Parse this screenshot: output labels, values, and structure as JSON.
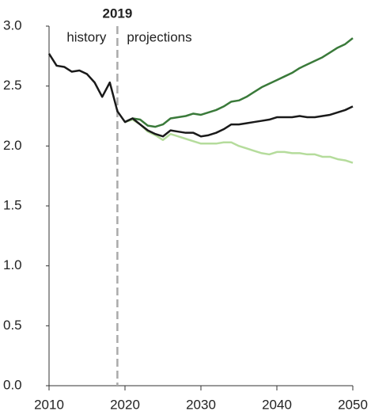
{
  "chart_data": {
    "type": "line",
    "x": [
      2010,
      2011,
      2012,
      2013,
      2014,
      2015,
      2016,
      2017,
      2018,
      2019,
      2020,
      2021,
      2022,
      2023,
      2024,
      2025,
      2026,
      2027,
      2028,
      2029,
      2030,
      2031,
      2032,
      2033,
      2034,
      2035,
      2036,
      2037,
      2038,
      2039,
      2040,
      2041,
      2042,
      2043,
      2044,
      2045,
      2046,
      2047,
      2048,
      2049,
      2050
    ],
    "series": [
      {
        "color": "#3a7a3a",
        "values": [
          null,
          null,
          null,
          null,
          null,
          null,
          null,
          null,
          null,
          null,
          2.2,
          2.23,
          2.22,
          2.17,
          2.16,
          2.18,
          2.23,
          2.24,
          2.25,
          2.27,
          2.26,
          2.28,
          2.3,
          2.33,
          2.37,
          2.38,
          2.41,
          2.45,
          2.49,
          2.52,
          2.55,
          2.58,
          2.61,
          2.65,
          2.68,
          2.71,
          2.74,
          2.78,
          2.82,
          2.85,
          2.9
        ]
      },
      {
        "color": "#b5dc9c",
        "values": [
          null,
          null,
          null,
          null,
          null,
          null,
          null,
          null,
          null,
          null,
          2.2,
          2.22,
          2.18,
          2.12,
          2.09,
          2.05,
          2.1,
          2.08,
          2.06,
          2.04,
          2.02,
          2.02,
          2.02,
          2.03,
          2.03,
          2.0,
          1.98,
          1.96,
          1.94,
          1.93,
          1.95,
          1.95,
          1.94,
          1.94,
          1.93,
          1.93,
          1.91,
          1.91,
          1.89,
          1.88,
          1.86
        ]
      },
      {
        "color": "#1a1a1a",
        "values": [
          2.77,
          2.67,
          2.66,
          2.62,
          2.63,
          2.6,
          2.53,
          2.41,
          2.53,
          2.29,
          2.2,
          2.23,
          2.18,
          2.13,
          2.1,
          2.08,
          2.13,
          2.12,
          2.11,
          2.11,
          2.08,
          2.09,
          2.11,
          2.14,
          2.18,
          2.18,
          2.19,
          2.2,
          2.21,
          2.22,
          2.24,
          2.24,
          2.24,
          2.25,
          2.24,
          2.24,
          2.25,
          2.26,
          2.28,
          2.3,
          2.33
        ]
      }
    ],
    "divider": {
      "x": 2019,
      "label": "2019",
      "left_text": "history",
      "right_text": "projections"
    },
    "xlim": [
      2010,
      2050
    ],
    "xticks": [
      2010,
      2020,
      2030,
      2040,
      2050
    ],
    "ylim": [
      0,
      3
    ],
    "yticks": [
      {
        "value": 0,
        "label": "0.0"
      },
      {
        "value": 0.5,
        "label": "0.5"
      },
      {
        "value": 1,
        "label": "1.0"
      },
      {
        "value": 1.5,
        "label": "1.5"
      },
      {
        "value": 2,
        "label": "2.0"
      },
      {
        "value": 2.5,
        "label": "2.5"
      },
      {
        "value": 3,
        "label": "3.0"
      }
    ]
  }
}
